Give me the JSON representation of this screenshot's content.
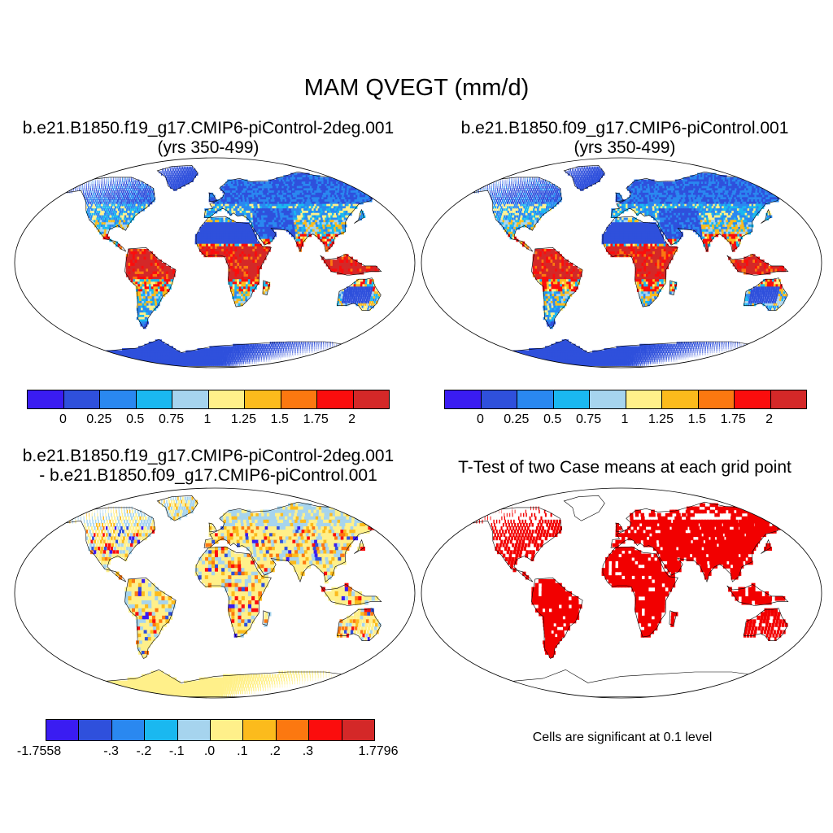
{
  "title": "MAM QVEGT (mm/d)",
  "panels": [
    {
      "id": "p1",
      "title1": "b.e21.B1850.f19_g17.CMIP6-piControl-2deg.001",
      "title2": "(yrs 350-499)"
    },
    {
      "id": "p2",
      "title1": "b.e21.B1850.f09_g17.CMIP6-piControl.001",
      "title2": "(yrs 350-499)"
    },
    {
      "id": "p3",
      "title1": "b.e21.B1850.f19_g17.CMIP6-piControl-2deg.001",
      "title2": "- b.e21.B1850.f09_g17.CMIP6-piControl.001"
    },
    {
      "id": "p4",
      "title1": "T-Test of two Case means at each grid point",
      "title2": ""
    }
  ],
  "colorbar_abs": {
    "colors": [
      "#3a1cf2",
      "#2f50dc",
      "#2a88f0",
      "#1ab8f0",
      "#a6d4ee",
      "#fff08a",
      "#fcbb1c",
      "#fc7810",
      "#fb0d0d",
      "#d42828"
    ],
    "labels": [
      "0",
      "0.25",
      "0.5",
      "0.75",
      "1",
      "1.25",
      "1.5",
      "1.75",
      "2"
    ]
  },
  "colorbar_diff": {
    "colors": [
      "#3a1cf2",
      "#2f50dc",
      "#2a88f0",
      "#1ab8f0",
      "#a6d4ee",
      "#fff08a",
      "#fcbb1c",
      "#fc7810",
      "#fb0d0d",
      "#d42828"
    ],
    "labels": [
      "-1.7558",
      "-.3",
      "-.2",
      "-.1",
      ".0",
      ".1",
      ".2",
      ".3",
      "1.7796"
    ],
    "label_slots": [
      0,
      2,
      3,
      4,
      5,
      6,
      7,
      8,
      10
    ]
  },
  "significance_note": "Cells are significant at 0.1 level",
  "significance_color": "#f20000",
  "land_colors_abs": {
    "polar": "#2f50dc",
    "desert": "#2f50dc",
    "temperate": "#2a88f0",
    "subtropic": "#fcbb1c",
    "tropic": "#d42828"
  },
  "land_colors_diff": {
    "base": "#fff08a",
    "cool": "#a6d4ee",
    "warm": "#fcbb1c",
    "hot": "#fb0d0d",
    "neg": "#2f50dc"
  }
}
